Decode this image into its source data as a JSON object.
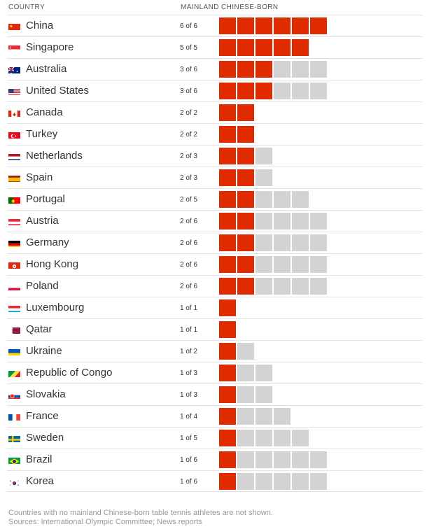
{
  "header": {
    "country_label": "COUNTRY",
    "metric_label": "MAINLAND CHINESE-BORN"
  },
  "colors": {
    "born_in_china": "#e02b00",
    "other": "#d3d3d3"
  },
  "chart_data": {
    "type": "table",
    "columns": [
      "COUNTRY",
      "MAINLAND CHINESE-BORN"
    ],
    "rows": [
      {
        "country": "China",
        "mainland": 6,
        "total": 6,
        "label": "6 of 6",
        "flag": "china-flag-icon"
      },
      {
        "country": "Singapore",
        "mainland": 5,
        "total": 5,
        "label": "5 of 5",
        "flag": "singapore-flag-icon"
      },
      {
        "country": "Australia",
        "mainland": 3,
        "total": 6,
        "label": "3 of 6",
        "flag": "australia-flag-icon"
      },
      {
        "country": "United States",
        "mainland": 3,
        "total": 6,
        "label": "3 of 6",
        "flag": "united-states-flag-icon"
      },
      {
        "country": "Canada",
        "mainland": 2,
        "total": 2,
        "label": "2 of 2",
        "flag": "canada-flag-icon"
      },
      {
        "country": "Turkey",
        "mainland": 2,
        "total": 2,
        "label": "2 of 2",
        "flag": "turkey-flag-icon"
      },
      {
        "country": "Netherlands",
        "mainland": 2,
        "total": 3,
        "label": "2 of 3",
        "flag": "netherlands-flag-icon"
      },
      {
        "country": "Spain",
        "mainland": 2,
        "total": 3,
        "label": "2 of 3",
        "flag": "spain-flag-icon"
      },
      {
        "country": "Portugal",
        "mainland": 2,
        "total": 5,
        "label": "2 of 5",
        "flag": "portugal-flag-icon"
      },
      {
        "country": "Austria",
        "mainland": 2,
        "total": 6,
        "label": "2 of 6",
        "flag": "austria-flag-icon"
      },
      {
        "country": "Germany",
        "mainland": 2,
        "total": 6,
        "label": "2 of 6",
        "flag": "germany-flag-icon"
      },
      {
        "country": "Hong Kong",
        "mainland": 2,
        "total": 6,
        "label": "2 of 6",
        "flag": "hong-kong-flag-icon"
      },
      {
        "country": "Poland",
        "mainland": 2,
        "total": 6,
        "label": "2 of 6",
        "flag": "poland-flag-icon"
      },
      {
        "country": "Luxembourg",
        "mainland": 1,
        "total": 1,
        "label": "1 of 1",
        "flag": "luxembourg-flag-icon"
      },
      {
        "country": "Qatar",
        "mainland": 1,
        "total": 1,
        "label": "1 of 1",
        "flag": "qatar-flag-icon"
      },
      {
        "country": "Ukraine",
        "mainland": 1,
        "total": 2,
        "label": "1 of 2",
        "flag": "ukraine-flag-icon"
      },
      {
        "country": "Republic of Congo",
        "mainland": 1,
        "total": 3,
        "label": "1 of 3",
        "flag": "republic-of-congo-flag-icon"
      },
      {
        "country": "Slovakia",
        "mainland": 1,
        "total": 3,
        "label": "1 of 3",
        "flag": "slovakia-flag-icon"
      },
      {
        "country": "France",
        "mainland": 1,
        "total": 4,
        "label": "1 of 4",
        "flag": "france-flag-icon"
      },
      {
        "country": "Sweden",
        "mainland": 1,
        "total": 5,
        "label": "1 of 5",
        "flag": "sweden-flag-icon"
      },
      {
        "country": "Brazil",
        "mainland": 1,
        "total": 6,
        "label": "1 of 6",
        "flag": "brazil-flag-icon"
      },
      {
        "country": "Korea",
        "mainland": 1,
        "total": 6,
        "label": "1 of 6",
        "flag": "korea-flag-icon"
      }
    ]
  },
  "footer": {
    "note": "Countries with no mainland Chinese-born table tennis athletes are not shown.",
    "sources": "Sources: International Olympic Committee; News reports"
  }
}
